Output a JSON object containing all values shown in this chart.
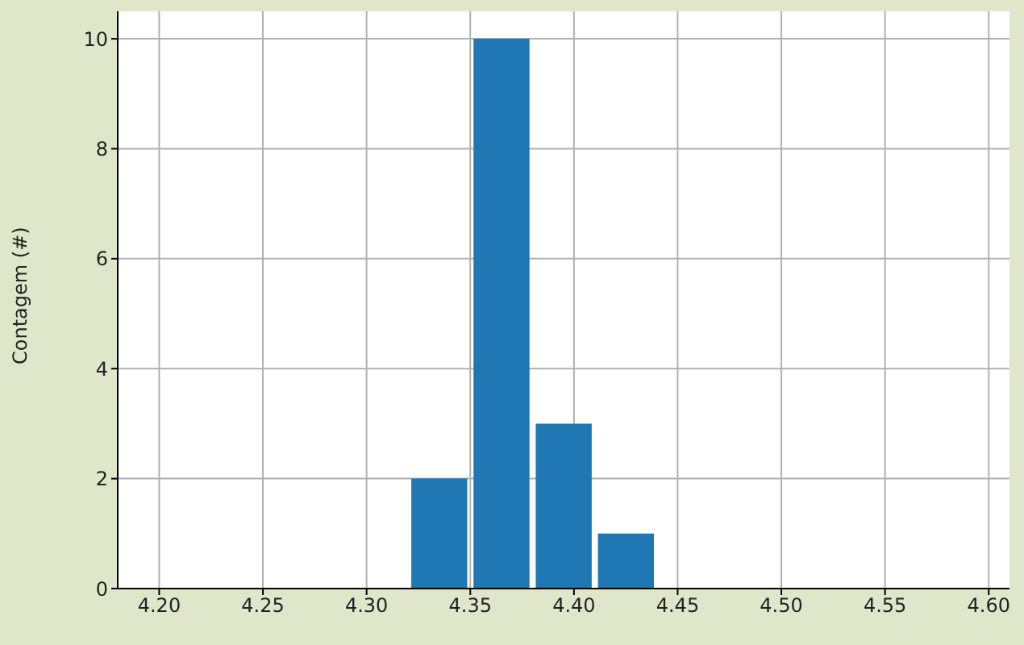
{
  "chart_data": {
    "type": "histogram",
    "ylabel": "Contagem (#)",
    "bins": [
      4.32,
      4.35,
      4.38,
      4.41,
      4.44
    ],
    "values": [
      2,
      10,
      3,
      1
    ],
    "color": "#1f77b4",
    "xlim": [
      4.18,
      4.61
    ],
    "xticks": [
      {
        "value": 4.2,
        "label": "4.20"
      },
      4.25,
      {
        "value": 4.3,
        "label": "4.30"
      },
      4.35,
      {
        "value": 4.4,
        "label": "4.40"
      },
      4.45,
      {
        "value": 4.5,
        "label": "4.50"
      },
      4.55,
      {
        "value": 4.6,
        "label": "4.60"
      }
    ],
    "ylim": [
      0,
      10.5
    ],
    "yticks": [
      0,
      2,
      4,
      6,
      8,
      10
    ],
    "grid": true
  }
}
